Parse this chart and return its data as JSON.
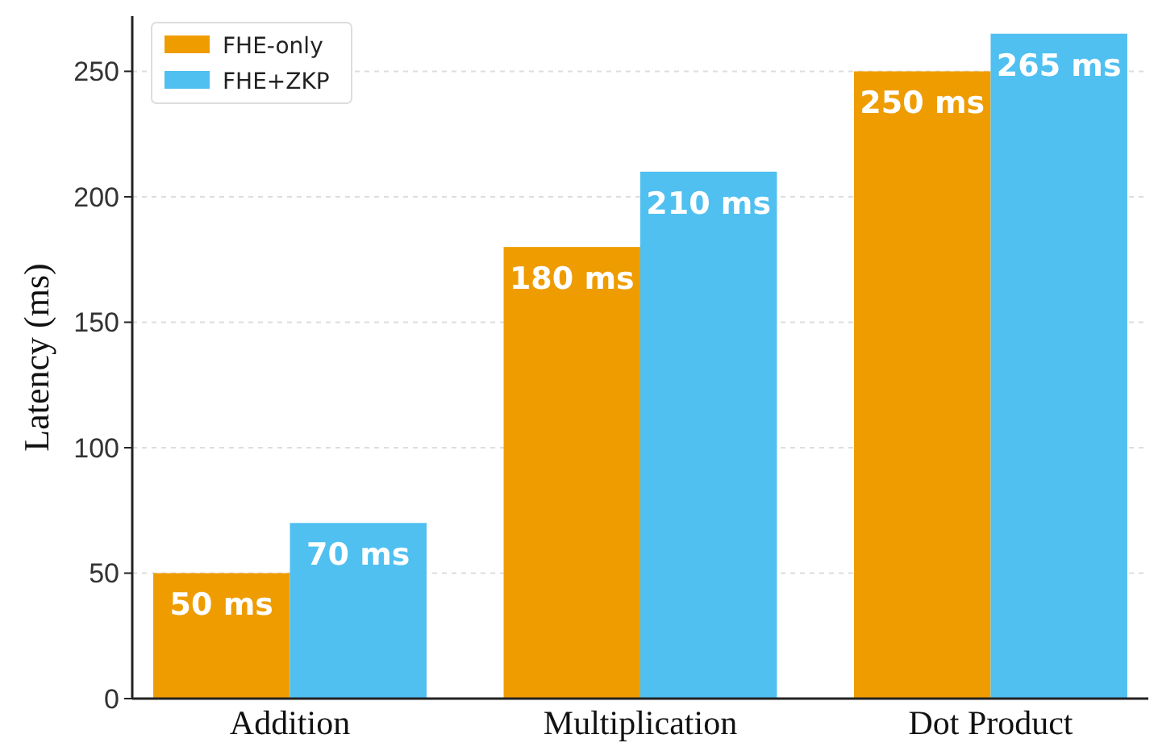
{
  "chart_data": {
    "type": "bar",
    "ylabel": "Latency (ms)",
    "categories": [
      "Addition",
      "Multiplication",
      "Dot Product"
    ],
    "series": [
      {
        "name": "FHE-only",
        "color": "#ee9c00",
        "values": [
          50,
          180,
          250
        ],
        "value_labels": [
          "50 ms",
          "180 ms",
          "250 ms"
        ]
      },
      {
        "name": "FHE+ZKP",
        "color": "#4fc0f0",
        "values": [
          70,
          210,
          265
        ],
        "value_labels": [
          "70 ms",
          "210 ms",
          "265 ms"
        ]
      }
    ],
    "ylim": [
      0,
      272
    ],
    "yticks": [
      0,
      50,
      100,
      150,
      200,
      250
    ],
    "grid": "y",
    "legend": "top left"
  }
}
